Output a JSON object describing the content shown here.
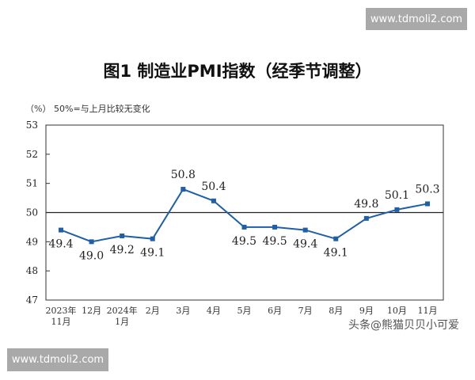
{
  "watermarks": {
    "top": "www.tdmoli2.com",
    "bottom": "www.tdmoli2.com",
    "source": "头条@熊猫贝贝小可爱"
  },
  "chart_data": {
    "type": "line",
    "title": "图1  制造业PMI指数（经季节调整）",
    "ylabel": "（%）",
    "annotation": "50%=与上月比较无变化",
    "categories": [
      [
        "2023年",
        "11月"
      ],
      [
        "12月"
      ],
      [
        "2024年",
        "1月"
      ],
      [
        "2月"
      ],
      [
        "3月"
      ],
      [
        "4月"
      ],
      [
        "5月"
      ],
      [
        "6月"
      ],
      [
        "7月"
      ],
      [
        "8月"
      ],
      [
        "9月"
      ],
      [
        "10月"
      ],
      [
        "11月"
      ]
    ],
    "values": [
      49.4,
      49.0,
      49.2,
      49.1,
      50.8,
      50.4,
      49.5,
      49.5,
      49.4,
      49.1,
      49.8,
      50.1,
      50.3
    ],
    "ylim": [
      47,
      53
    ],
    "yticks": [
      47,
      48,
      49,
      50,
      51,
      52,
      53
    ],
    "reference_line": 50,
    "line_color": "#1f5fa8",
    "grid": false
  }
}
